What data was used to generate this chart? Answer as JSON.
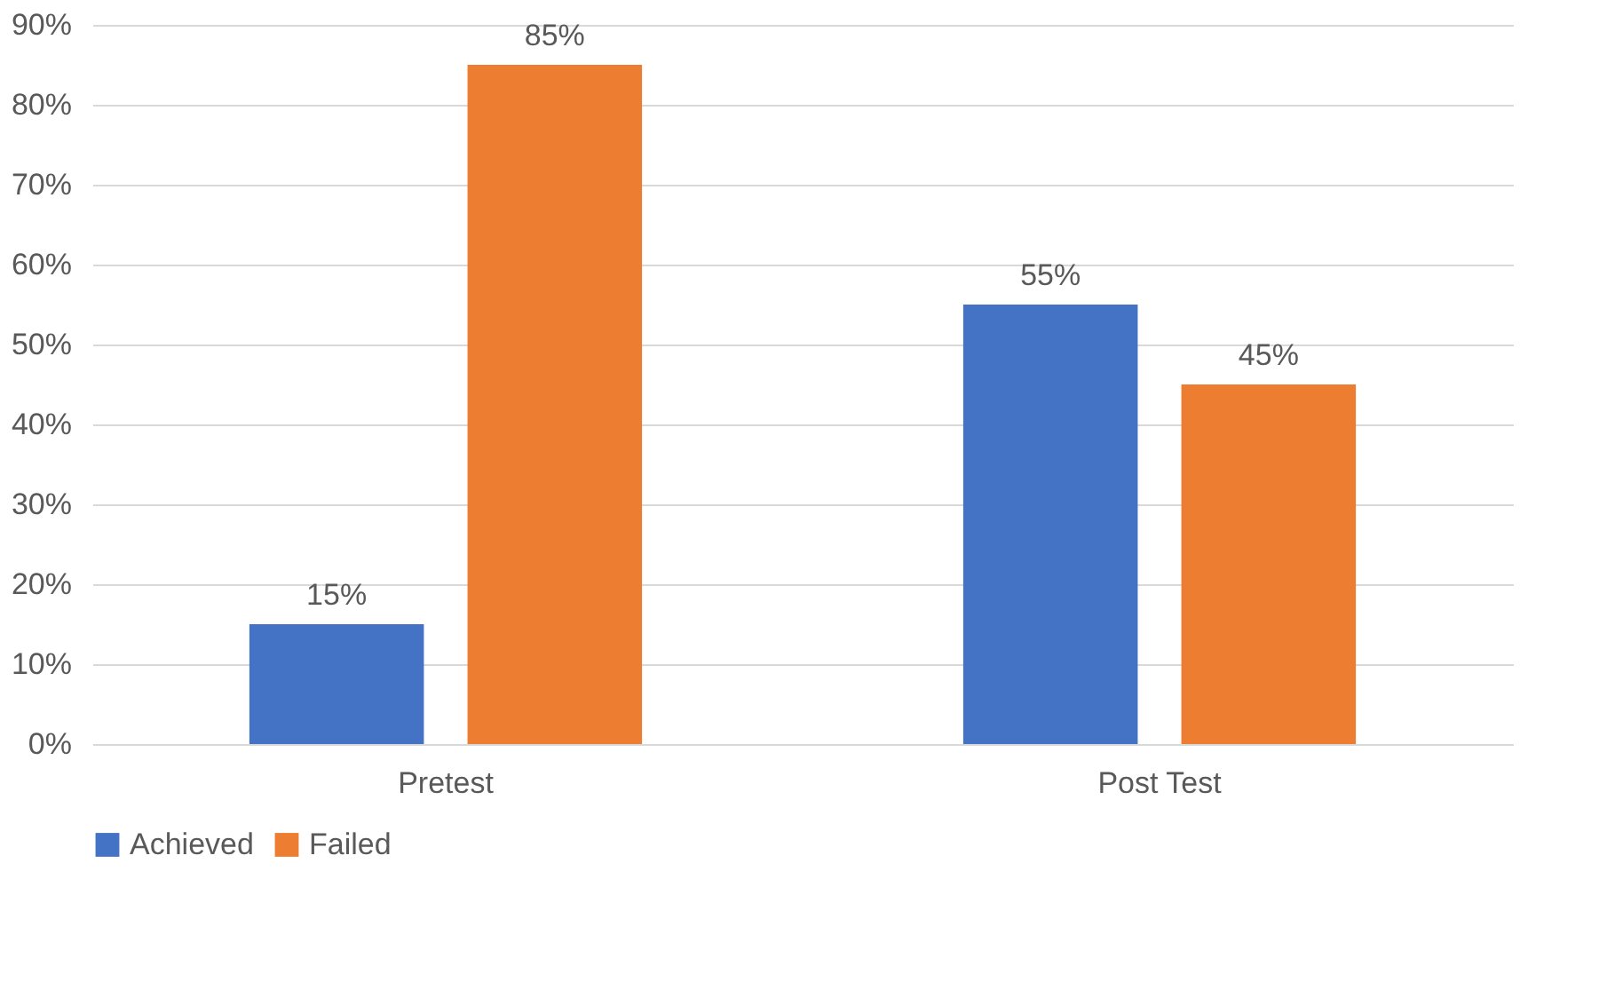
{
  "chart_data": {
    "type": "bar",
    "categories": [
      "Pretest",
      "Post Test"
    ],
    "series": [
      {
        "name": "Achieved",
        "color": "#4472c4",
        "values": [
          15,
          55
        ],
        "value_labels": [
          "15%",
          "55%"
        ]
      },
      {
        "name": "Failed",
        "color": "#ed7d31",
        "values": [
          85,
          45
        ],
        "value_labels": [
          "85%",
          "45%"
        ]
      }
    ],
    "ylim": [
      0,
      90
    ],
    "yticks": [
      {
        "value": 0,
        "label": "0%"
      },
      {
        "value": 10,
        "label": "10%"
      },
      {
        "value": 20,
        "label": "20%"
      },
      {
        "value": 30,
        "label": "30%"
      },
      {
        "value": 40,
        "label": "40%"
      },
      {
        "value": 50,
        "label": "50%"
      },
      {
        "value": 60,
        "label": "60%"
      },
      {
        "value": 70,
        "label": "70%"
      },
      {
        "value": 80,
        "label": "80%"
      },
      {
        "value": 90,
        "label": "90%"
      }
    ],
    "grid": "y",
    "legend": "bottom"
  }
}
